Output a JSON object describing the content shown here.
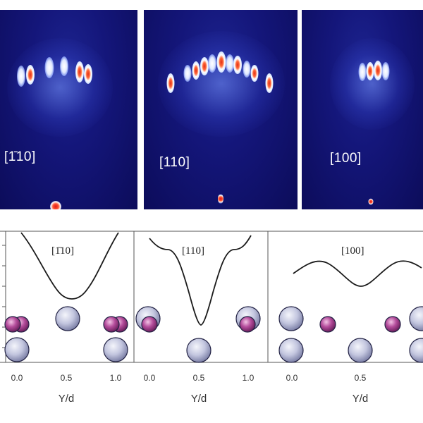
{
  "top_panels": [
    {
      "label": "[1̄​10]"
    },
    {
      "label": "[110]"
    },
    {
      "label": "[100]"
    }
  ],
  "bottom_panels": [
    {
      "label": "[1̄​10]"
    },
    {
      "label": "[110]"
    },
    {
      "label": "[100]"
    }
  ],
  "xaxis": {
    "title": "Y/d",
    "ticks": [
      "0.0",
      "0.5",
      "1.0"
    ]
  },
  "colors": {
    "background_panel": "#12137a",
    "large_atom": "#b4b8d4",
    "small_atom": "#b04a98",
    "potential_curve": "#1a1a1a"
  }
}
